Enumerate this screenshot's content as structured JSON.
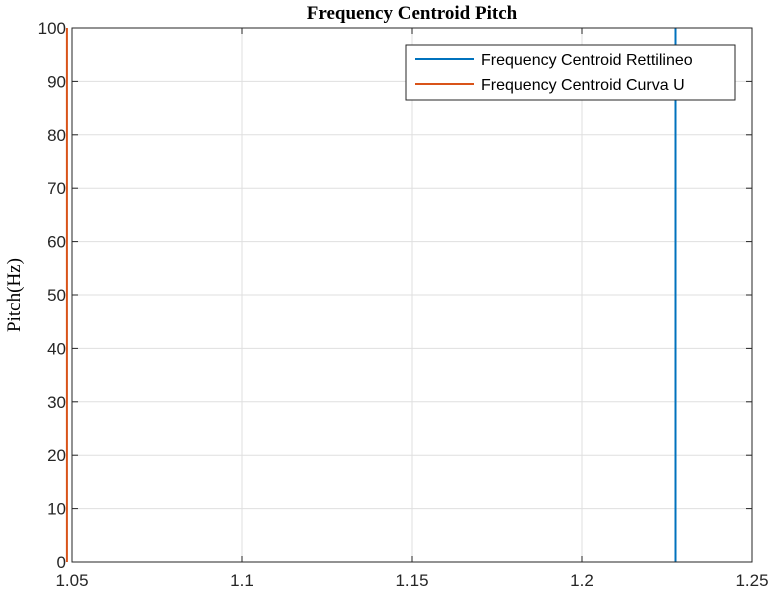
{
  "chart_data": {
    "type": "line",
    "title": "Frequency Centroid Pitch",
    "xlabel": "",
    "ylabel": "Pitch(Hz)",
    "xlim": [
      1.05,
      1.25
    ],
    "ylim": [
      0,
      100
    ],
    "xticks": [
      1.05,
      1.1,
      1.15,
      1.2,
      1.25
    ],
    "xtick_labels": [
      "1.05",
      "1.1",
      "1.15",
      "1.2",
      "1.25"
    ],
    "yticks": [
      0,
      10,
      20,
      30,
      40,
      50,
      60,
      70,
      80,
      90,
      100
    ],
    "ytick_labels": [
      "0",
      "10",
      "20",
      "30",
      "40",
      "50",
      "60",
      "70",
      "80",
      "90",
      "100"
    ],
    "grid": true,
    "legend_position": "top-right",
    "series": [
      {
        "name": "Frequency Centroid Rettilineo",
        "color": "#0072BD",
        "x": [
          1.2275,
          1.2275
        ],
        "y": [
          0,
          100
        ]
      },
      {
        "name": "Frequency Centroid Curva U",
        "color": "#D95319",
        "x": [
          1.0485,
          1.0485
        ],
        "y": [
          0,
          100
        ]
      }
    ]
  }
}
